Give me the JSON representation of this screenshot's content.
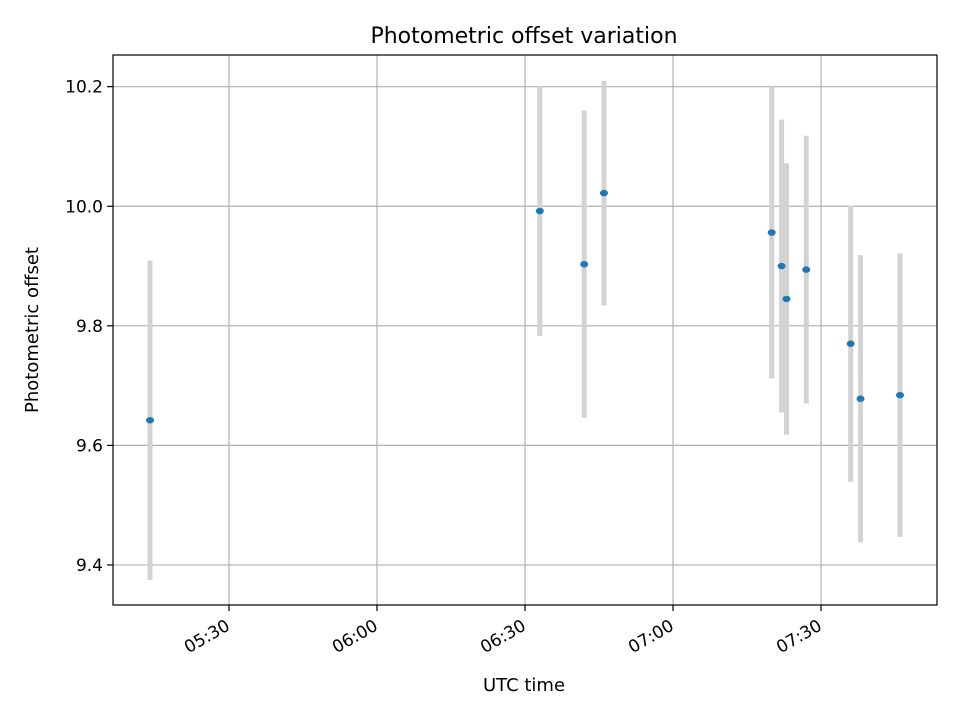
{
  "chart_data": {
    "type": "scatter",
    "title": "Photometric offset variation",
    "xlabel": "UTC time",
    "ylabel": "Photometric offset",
    "x_axis_type": "time",
    "xlim": [
      "05:06:30",
      "07:53:30"
    ],
    "ylim": [
      9.333,
      10.253
    ],
    "x_ticks": [
      "05:30",
      "06:00",
      "06:30",
      "07:00",
      "07:30"
    ],
    "y_ticks": [
      9.4,
      9.6,
      9.8,
      10.0,
      10.2
    ],
    "y_tick_labels": [
      "9.4",
      "9.6",
      "9.8",
      "10.0",
      "10.2"
    ],
    "grid": true,
    "legend": "none",
    "marker_color": "#1f77b4",
    "errorbar_color": "#d3d3d3",
    "points": [
      {
        "x": "05:14",
        "y": 9.642,
        "err": 0.267
      },
      {
        "x": "06:33",
        "y": 9.992,
        "err": 0.209
      },
      {
        "x": "06:42",
        "y": 9.903,
        "err": 0.257
      },
      {
        "x": "06:46",
        "y": 10.022,
        "err": 0.188
      },
      {
        "x": "07:20",
        "y": 9.956,
        "err": 0.244
      },
      {
        "x": "07:22",
        "y": 9.9,
        "err": 0.245
      },
      {
        "x": "07:23",
        "y": 9.845,
        "err": 0.227
      },
      {
        "x": "07:27",
        "y": 9.894,
        "err": 0.224
      },
      {
        "x": "07:36",
        "y": 9.77,
        "err": 0.231
      },
      {
        "x": "07:38",
        "y": 9.678,
        "err": 0.24
      },
      {
        "x": "07:46",
        "y": 9.684,
        "err": 0.237
      }
    ]
  }
}
